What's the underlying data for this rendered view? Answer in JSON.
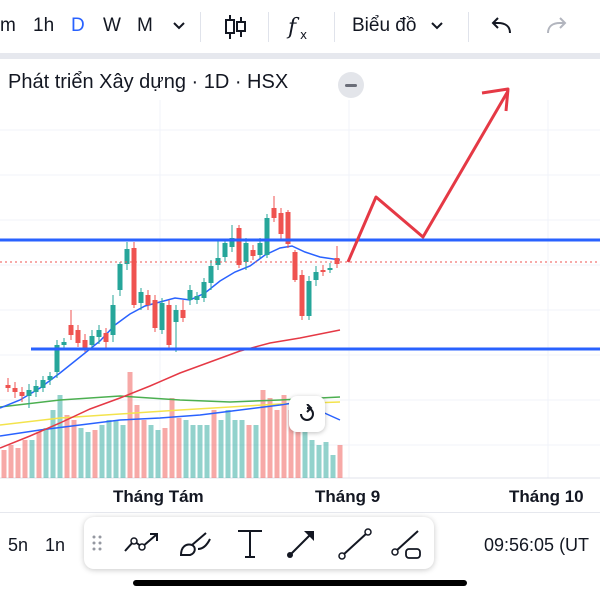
{
  "header": {
    "intervals": [
      "m",
      "1h",
      "D",
      "W",
      "M"
    ],
    "active_interval": "D",
    "chart_type_label": "Biểu đồ"
  },
  "symbol": {
    "title": "Phát triển Xây dựng · 1D · HSX"
  },
  "xaxis": {
    "labels": [
      "Tháng Tám",
      "Tháng 9",
      "Tháng 10"
    ]
  },
  "bottom": {
    "intervals": [
      "5n",
      "1n"
    ],
    "time": "09:56:05 (UT"
  },
  "icons": [
    "chevron-down-icon",
    "candlestick-icon",
    "indicators-fx-icon",
    "undo-icon",
    "redo-icon",
    "reset-chart-icon",
    "drag-handle-icon",
    "trend-line-tool-icon",
    "brush-tool-icon",
    "text-tool-icon",
    "arrow-tool-icon",
    "line-tool-icon",
    "ray-tool-icon"
  ],
  "colors": {
    "up": "#26a69a",
    "down": "#ef5350",
    "hline": "#2962ff",
    "arrow": "#e53945",
    "ma_fast": "#2962ff",
    "ma_slow": "#e53945"
  }
}
